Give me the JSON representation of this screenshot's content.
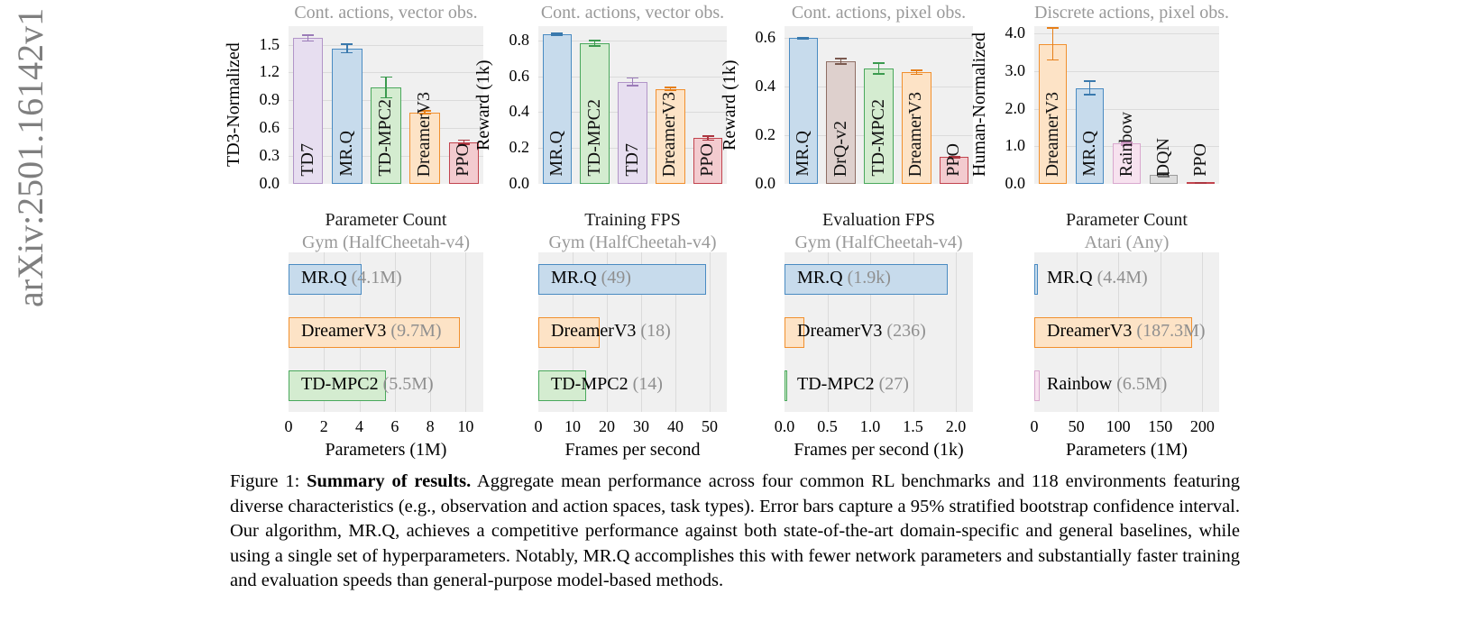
{
  "watermark": {
    "text": "arXiv:2501.16142v1"
  },
  "palette": {
    "blue": {
      "fill": "#c7dbec",
      "edge": "#4a8bc2",
      "err": "#3a79ad"
    },
    "purple": {
      "fill": "#e7def0",
      "edge": "#b295c8",
      "err": "#9b7cb8"
    },
    "green": {
      "fill": "#d4ecd0",
      "edge": "#4aa85c",
      "err": "#3a9a4e"
    },
    "orange": {
      "fill": "#fde3c6",
      "edge": "#f1902e",
      "err": "#e67f19"
    },
    "red": {
      "fill": "#f3cbcf",
      "edge": "#c2444e",
      "err": "#ab3640"
    },
    "brown": {
      "fill": "#ded0cd",
      "edge": "#8f6e64",
      "err": "#7a594f"
    },
    "pink": {
      "fill": "#f7e2ef",
      "edge": "#d9a8ce",
      "err": "#c791bd"
    },
    "gray": {
      "fill": "#dcdcdc",
      "edge": "#9b9b9b",
      "err": "#777777"
    }
  },
  "chart_data": [
    {
      "type": "bar",
      "orientation": "vertical",
      "name": "chart-cont-actions-vector-obs-td3",
      "title": "Cont. actions, vector obs.",
      "ylabel": "TD3-Normalized",
      "ylim": [
        0,
        1.7
      ],
      "yticks": [
        "0.0",
        "0.3",
        "0.6",
        "0.9",
        "1.2",
        "1.5"
      ],
      "ytick_values": [
        0,
        0.3,
        0.6,
        0.9,
        1.2,
        1.5
      ],
      "grid": "horizontal",
      "bars": [
        {
          "label": "TD7",
          "value": 1.57,
          "error": 0.04,
          "color": "purple"
        },
        {
          "label": "MR.Q",
          "value": 1.46,
          "error": 0.055,
          "color": "blue"
        },
        {
          "label": "TD-MPC2",
          "value": 1.04,
          "error": 0.12,
          "color": "green"
        },
        {
          "label": "DreamerV3",
          "value": 0.77,
          "error": 0.025,
          "color": "orange"
        },
        {
          "label": "PPO",
          "value": 0.45,
          "error": 0.03,
          "color": "red"
        }
      ]
    },
    {
      "type": "bar",
      "orientation": "vertical",
      "name": "chart-cont-actions-vector-obs-reward",
      "title": "Cont. actions, vector obs.",
      "ylabel": "Reward (1k)",
      "ylim": [
        0,
        0.88
      ],
      "yticks": [
        "0.0",
        "0.2",
        "0.4",
        "0.6",
        "0.8"
      ],
      "ytick_values": [
        0,
        0.2,
        0.4,
        0.6,
        0.8
      ],
      "grid": "horizontal",
      "bars": [
        {
          "label": "MR.Q",
          "value": 0.835,
          "error": 0.01,
          "color": "blue"
        },
        {
          "label": "TD-MPC2",
          "value": 0.785,
          "error": 0.02,
          "color": "green"
        },
        {
          "label": "TD7",
          "value": 0.57,
          "error": 0.025,
          "color": "purple"
        },
        {
          "label": "DreamerV3",
          "value": 0.53,
          "error": 0.012,
          "color": "orange"
        },
        {
          "label": "PPO",
          "value": 0.255,
          "error": 0.015,
          "color": "red"
        }
      ]
    },
    {
      "type": "bar",
      "orientation": "vertical",
      "name": "chart-cont-actions-pixel-obs-reward",
      "title": "Cont. actions, pixel obs.",
      "ylabel": "Reward (1k)",
      "ylim": [
        0,
        0.65
      ],
      "yticks": [
        "0.0",
        "0.2",
        "0.4",
        "0.6"
      ],
      "ytick_values": [
        0,
        0.2,
        0.4,
        0.6
      ],
      "grid": "horizontal",
      "bars": [
        {
          "label": "MR.Q",
          "value": 0.6,
          "error": 0.006,
          "color": "blue"
        },
        {
          "label": "DrQ-v2",
          "value": 0.505,
          "error": 0.015,
          "color": "brown"
        },
        {
          "label": "TD-MPC2",
          "value": 0.475,
          "error": 0.025,
          "color": "green"
        },
        {
          "label": "DreamerV3",
          "value": 0.46,
          "error": 0.012,
          "color": "orange"
        },
        {
          "label": "PPO",
          "value": 0.11,
          "error": 0.006,
          "color": "red"
        }
      ]
    },
    {
      "type": "bar",
      "orientation": "vertical",
      "name": "chart-discrete-actions-pixel-obs-human",
      "title": "Discrete actions, pixel obs.",
      "ylabel": "Human-Normalized",
      "ylim": [
        0,
        4.2
      ],
      "yticks": [
        "0.0",
        "1.0",
        "2.0",
        "3.0",
        "4.0"
      ],
      "ytick_values": [
        0,
        1,
        2,
        3,
        4
      ],
      "grid": "horizontal",
      "bars": [
        {
          "label": "DreamerV3",
          "value": 3.73,
          "error": 0.45,
          "color": "orange"
        },
        {
          "label": "MR.Q",
          "value": 2.55,
          "error": 0.2,
          "color": "blue"
        },
        {
          "label": "Rainbow",
          "value": 1.07,
          "error": 0.06,
          "color": "pink"
        },
        {
          "label": "DQN",
          "value": 0.24,
          "error": 0.07,
          "color": "gray"
        },
        {
          "label": "PPO",
          "value": 0.02,
          "error": 0.015,
          "color": "red"
        }
      ]
    },
    {
      "type": "bar",
      "orientation": "horizontal",
      "name": "chart-parameter-count-gym",
      "title": "Parameter Count",
      "subtitle": "Gym (HalfCheetah-v4)",
      "xlabel": "Parameters (1M)",
      "xlim": [
        0,
        11
      ],
      "xticks": [
        "0",
        "2",
        "4",
        "6",
        "8",
        "10"
      ],
      "xtick_values": [
        0,
        2,
        4,
        6,
        8,
        10
      ],
      "grid": "vertical",
      "bars": [
        {
          "label": "MR.Q",
          "value": 4.1,
          "value_text": "(4.1M)",
          "color": "blue"
        },
        {
          "label": "DreamerV3",
          "value": 9.7,
          "value_text": "(9.7M)",
          "color": "orange"
        },
        {
          "label": "TD-MPC2",
          "value": 5.5,
          "value_text": "(5.5M)",
          "color": "green"
        }
      ]
    },
    {
      "type": "bar",
      "orientation": "horizontal",
      "name": "chart-training-fps-gym",
      "title": "Training FPS",
      "subtitle": "Gym (HalfCheetah-v4)",
      "xlabel": "Frames per second",
      "xlim": [
        0,
        55
      ],
      "xticks": [
        "0",
        "10",
        "20",
        "30",
        "40",
        "50"
      ],
      "xtick_values": [
        0,
        10,
        20,
        30,
        40,
        50
      ],
      "grid": "vertical",
      "bars": [
        {
          "label": "MR.Q",
          "value": 49,
          "value_text": "(49)",
          "color": "blue"
        },
        {
          "label": "DreamerV3",
          "value": 18,
          "value_text": "(18)",
          "color": "orange"
        },
        {
          "label": "TD-MPC2",
          "value": 14,
          "value_text": "(14)",
          "color": "green"
        }
      ]
    },
    {
      "type": "bar",
      "orientation": "horizontal",
      "name": "chart-evaluation-fps-gym",
      "title": "Evaluation FPS",
      "subtitle": "Gym (HalfCheetah-v4)",
      "xlabel": "Frames per second (1k)",
      "xlim": [
        0,
        2.2
      ],
      "xticks": [
        "0.0",
        "0.5",
        "1.0",
        "1.5",
        "2.0"
      ],
      "xtick_values": [
        0,
        0.5,
        1.0,
        1.5,
        2.0
      ],
      "grid": "vertical",
      "bars": [
        {
          "label": "MR.Q",
          "value": 1.9,
          "value_text": "(1.9k)",
          "color": "blue"
        },
        {
          "label": "DreamerV3",
          "value": 0.236,
          "value_text": "(236)",
          "color": "orange"
        },
        {
          "label": "TD-MPC2",
          "value": 0.027,
          "value_text": "(27)",
          "color": "green"
        }
      ]
    },
    {
      "type": "bar",
      "orientation": "horizontal",
      "name": "chart-parameter-count-atari",
      "title": "Parameter Count",
      "subtitle": "Atari (Any)",
      "xlabel": "Parameters (1M)",
      "xlim": [
        0,
        220
      ],
      "xticks": [
        "0",
        "50",
        "100",
        "150",
        "200"
      ],
      "xtick_values": [
        0,
        50,
        100,
        150,
        200
      ],
      "grid": "vertical",
      "bars": [
        {
          "label": "MR.Q",
          "value": 4.4,
          "value_text": "(4.4M)",
          "color": "blue"
        },
        {
          "label": "DreamerV3",
          "value": 187.3,
          "value_text": "(187.3M)",
          "color": "orange"
        },
        {
          "label": "Rainbow",
          "value": 6.5,
          "value_text": "(6.5M)",
          "color": "pink"
        }
      ]
    }
  ],
  "caption": {
    "prefix": "Figure 1: ",
    "bold": "Summary of results.",
    "body": "  Aggregate mean performance across four common RL benchmarks and 118 environments featuring diverse characteristics (e.g., observation and action spaces, task types). Error bars capture a 95% stratified bootstrap confidence interval. Our algorithm, MR.Q, achieves a competitive performance against both state-of-the-art domain-specific and general baselines, while using a single set of hyperparameters. Notably, MR.Q accomplishes this with fewer network parameters and substantially faster training and evaluation speeds than general-purpose model-based methods."
  }
}
